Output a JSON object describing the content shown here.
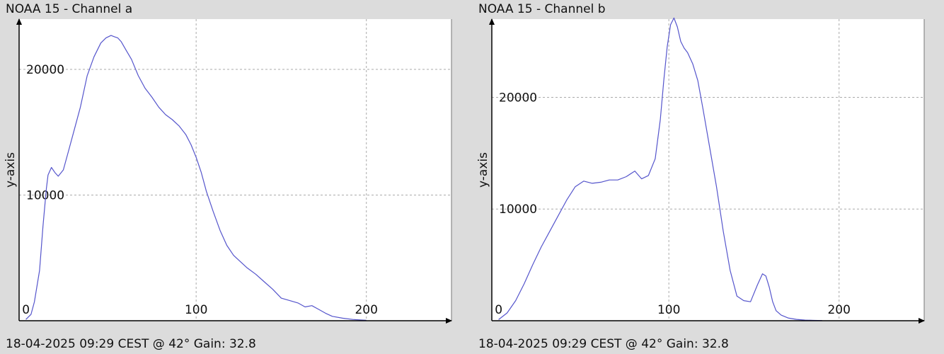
{
  "panels": [
    {
      "title": "NOAA 15 - Channel a",
      "footer": "18-04-2025 09:29 CEST @ 42° Gain: 32.8"
    },
    {
      "title": "NOAA 15 - Channel b",
      "footer": "18-04-2025 09:29 CEST @ 42° Gain: 32.8"
    }
  ],
  "colors": {
    "background": "#dcdcdc",
    "plot_area": "#ffffff",
    "series": "#5555cc",
    "grid": "#aaaaaa",
    "axis": "#000000"
  },
  "chart_data": [
    {
      "type": "line",
      "title": "NOAA 15 - Channel a",
      "xlabel": "",
      "ylabel": "y-axis",
      "xlim": [
        -4,
        250
      ],
      "ylim": [
        0,
        24000
      ],
      "xticks": [
        0,
        100,
        200
      ],
      "yticks": [
        10000,
        20000
      ],
      "grid": true,
      "series": [
        {
          "x": [
            0,
            3,
            5,
            8,
            10,
            12,
            13,
            15,
            17,
            19,
            22,
            25,
            28,
            32,
            36,
            40,
            44,
            47,
            50,
            52,
            54,
            56,
            59,
            62,
            66,
            70,
            74,
            78,
            82,
            86,
            90,
            94,
            97,
            100,
            103,
            106,
            110,
            114,
            118,
            122,
            126,
            130,
            135,
            140,
            145,
            150,
            155,
            160,
            164,
            168,
            172,
            176,
            180,
            186,
            192,
            198,
            200
          ],
          "values": [
            100,
            500,
            1500,
            4000,
            7500,
            10500,
            11600,
            12200,
            11800,
            11500,
            12000,
            13500,
            15000,
            17000,
            19500,
            21000,
            22100,
            22500,
            22700,
            22600,
            22500,
            22200,
            21500,
            20800,
            19500,
            18500,
            17800,
            17000,
            16400,
            16000,
            15500,
            14800,
            14000,
            13000,
            11800,
            10300,
            8700,
            7200,
            6000,
            5200,
            4700,
            4200,
            3700,
            3100,
            2500,
            1800,
            1600,
            1400,
            1100,
            1200,
            900,
            600,
            350,
            200,
            100,
            50,
            40
          ]
        }
      ]
    },
    {
      "type": "line",
      "title": "NOAA 15 - Channel b",
      "xlabel": "",
      "ylabel": "y-axis",
      "xlim": [
        -4,
        250
      ],
      "ylim": [
        0,
        27000
      ],
      "xticks": [
        0,
        100,
        200
      ],
      "yticks": [
        10000,
        20000
      ],
      "grid": true,
      "series": [
        {
          "x": [
            0,
            5,
            10,
            15,
            20,
            25,
            30,
            35,
            40,
            45,
            50,
            55,
            60,
            65,
            70,
            75,
            80,
            84,
            88,
            92,
            95,
            97,
            99,
            101,
            103,
            105,
            107,
            109,
            111,
            114,
            117,
            120,
            124,
            128,
            132,
            136,
            140,
            144,
            148,
            152,
            155,
            157,
            159,
            161,
            163,
            166,
            170,
            175,
            180,
            185,
            190
          ],
          "values": [
            100,
            700,
            1800,
            3300,
            5000,
            6600,
            8000,
            9400,
            10800,
            12000,
            12500,
            12300,
            12400,
            12600,
            12600,
            12900,
            13400,
            12700,
            13000,
            14500,
            18000,
            21500,
            24500,
            26500,
            27100,
            26300,
            25000,
            24400,
            24000,
            23000,
            21500,
            19000,
            15500,
            12000,
            8000,
            4500,
            2200,
            1800,
            1700,
            3200,
            4200,
            4000,
            3000,
            1700,
            900,
            500,
            250,
            120,
            60,
            30,
            20
          ]
        }
      ]
    }
  ]
}
